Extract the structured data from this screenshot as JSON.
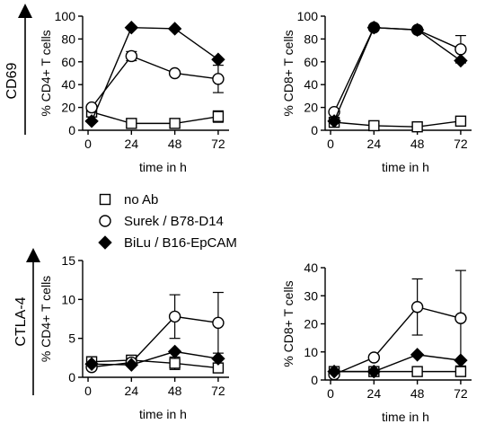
{
  "figure": {
    "row_labels": [
      "CD69",
      "CTLA-4"
    ]
  },
  "legend": [
    {
      "label": "no Ab",
      "marker": "open-square"
    },
    {
      "label": "Surek / B78-D14",
      "marker": "open-circle"
    },
    {
      "label": "BiLu / B16-EpCAM",
      "marker": "filled-diamond"
    }
  ],
  "chart_data": [
    {
      "type": "line",
      "row_label": "CD69",
      "ylabel": "% CD4+ T cells",
      "xlabel": "time in h",
      "x_ticks": [
        0,
        24,
        48,
        72
      ],
      "y_ticks": [
        0,
        20,
        40,
        60,
        80,
        100
      ],
      "xlim": [
        -3,
        78
      ],
      "ylim": [
        0,
        100
      ],
      "grid": false,
      "series": [
        {
          "name": "no Ab",
          "marker": "open-square",
          "x": [
            2,
            24,
            48,
            72
          ],
          "y": [
            16,
            6,
            6,
            12
          ],
          "err": [
            0,
            0,
            0,
            5
          ]
        },
        {
          "name": "Surek / B78-D14",
          "marker": "open-circle",
          "x": [
            2,
            24,
            48,
            72
          ],
          "y": [
            20,
            65,
            50,
            45
          ],
          "err": [
            0,
            4,
            0,
            12
          ]
        },
        {
          "name": "BiLu / B16-EpCAM",
          "marker": "filled-diamond",
          "x": [
            2,
            24,
            48,
            72
          ],
          "y": [
            8,
            90,
            89,
            62
          ],
          "err": [
            0,
            0,
            0,
            0
          ]
        }
      ]
    },
    {
      "type": "line",
      "row_label": "CD69",
      "ylabel": "% CD8+ T cells",
      "xlabel": "time in h",
      "x_ticks": [
        0,
        24,
        48,
        72
      ],
      "y_ticks": [
        0,
        20,
        40,
        60,
        80,
        100
      ],
      "xlim": [
        -3,
        78
      ],
      "ylim": [
        0,
        100
      ],
      "grid": false,
      "series": [
        {
          "name": "no Ab",
          "marker": "open-square",
          "x": [
            2,
            24,
            48,
            72
          ],
          "y": [
            7,
            4,
            3,
            8
          ],
          "err": [
            0,
            0,
            0,
            0
          ]
        },
        {
          "name": "Surek / B78-D14",
          "marker": "open-circle",
          "x": [
            2,
            24,
            48,
            72
          ],
          "y": [
            16,
            90,
            88,
            71
          ],
          "err": [
            0,
            0,
            0,
            12
          ]
        },
        {
          "name": "BiLu / B16-EpCAM",
          "marker": "filled-diamond",
          "x": [
            2,
            24,
            48,
            72
          ],
          "y": [
            8,
            90,
            88,
            61
          ],
          "err": [
            0,
            0,
            0,
            0
          ]
        }
      ]
    },
    {
      "type": "line",
      "row_label": "CTLA-4",
      "ylabel": "% CD4+ T cells",
      "xlabel": "time in h",
      "x_ticks": [
        0,
        24,
        48,
        72
      ],
      "y_ticks": [
        0,
        5,
        10,
        15
      ],
      "xlim": [
        -3,
        78
      ],
      "ylim": [
        0,
        15
      ],
      "grid": false,
      "series": [
        {
          "name": "no Ab",
          "marker": "open-square",
          "x": [
            2,
            24,
            48,
            72
          ],
          "y": [
            2.0,
            2.2,
            1.8,
            1.2
          ],
          "err": [
            0,
            0.3,
            0.8,
            0.6
          ]
        },
        {
          "name": "Surek / B78-D14",
          "marker": "open-circle",
          "x": [
            2,
            24,
            48,
            72
          ],
          "y": [
            1.3,
            1.9,
            7.8,
            7.0
          ],
          "err": [
            0,
            0.3,
            2.8,
            3.9
          ]
        },
        {
          "name": "BiLu / B16-EpCAM",
          "marker": "filled-diamond",
          "x": [
            2,
            24,
            48,
            72
          ],
          "y": [
            1.7,
            1.6,
            3.3,
            2.4
          ],
          "err": [
            0,
            0,
            0,
            0
          ]
        }
      ]
    },
    {
      "type": "line",
      "row_label": "CTLA-4",
      "ylabel": "% CD8+ T cells",
      "xlabel": "time in h",
      "x_ticks": [
        0,
        24,
        48,
        72
      ],
      "y_ticks": [
        0,
        10,
        20,
        30,
        40
      ],
      "xlim": [
        -3,
        78
      ],
      "ylim": [
        0,
        40
      ],
      "grid": false,
      "series": [
        {
          "name": "no Ab",
          "marker": "open-square",
          "x": [
            2,
            24,
            48,
            72
          ],
          "y": [
            3,
            3,
            3,
            3
          ],
          "err": [
            0,
            0,
            0,
            0
          ]
        },
        {
          "name": "Surek / B78-D14",
          "marker": "open-circle",
          "x": [
            2,
            24,
            48,
            72
          ],
          "y": [
            2,
            8,
            26,
            22
          ],
          "err": [
            0,
            0,
            10,
            17
          ]
        },
        {
          "name": "BiLu / B16-EpCAM",
          "marker": "filled-diamond",
          "x": [
            2,
            24,
            48,
            72
          ],
          "y": [
            3,
            3,
            9,
            7
          ],
          "err": [
            0,
            0,
            0,
            0
          ]
        }
      ]
    }
  ]
}
